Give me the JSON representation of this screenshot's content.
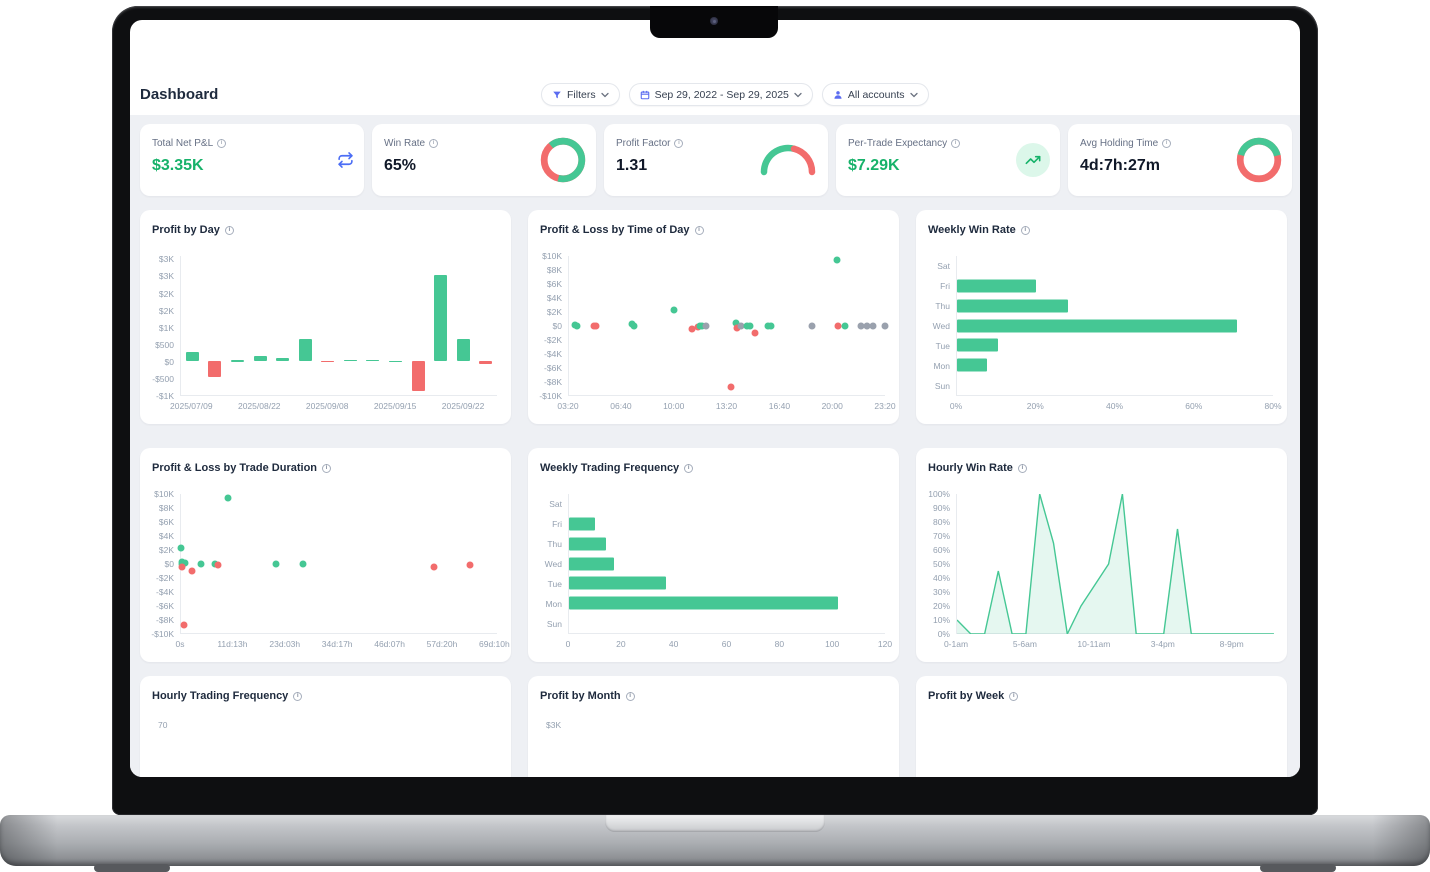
{
  "header": {
    "title": "Dashboard",
    "filters_label": "Filters",
    "date_range": "Sep 29, 2022 - Sep 29, 2025",
    "accounts_label": "All accounts"
  },
  "colors": {
    "green": "#45c794",
    "red": "#f26c6c",
    "gray_dot": "#9aa1ad",
    "indigo_icon": "#5b6cf0",
    "blue_icon": "#4c6ef5",
    "profit_green": "#17b26a",
    "page_bg": "#eef0f4"
  },
  "kpis": [
    {
      "label": "Total Net P&L",
      "value": "$3.35K",
      "value_color": "green",
      "icon": "repeat-icon"
    },
    {
      "label": "Win Rate",
      "value": "65%",
      "ring": {
        "green_pct": 65,
        "start_deg": 320
      }
    },
    {
      "label": "Profit Factor",
      "value": "1.31",
      "gauge": {
        "green_pct": 58
      }
    },
    {
      "label": "Per-Trade Expectancy",
      "value": "$7.29K",
      "value_color": "green",
      "icon": "trend-up-icon"
    },
    {
      "label": "Avg Holding Time",
      "value": "4d:7h:27m",
      "ring": {
        "green_pct": 42,
        "start_deg": 285
      }
    }
  ],
  "chart_data": [
    {
      "type": "bar",
      "title": "Profit by Day",
      "values": [
        280,
        -480,
        20,
        150,
        100,
        650,
        -40,
        30,
        40,
        15,
        -880,
        2550,
        650,
        -90
      ],
      "x_tick_indices": [
        0,
        3,
        6,
        9,
        12
      ],
      "x_tick_labels": [
        "2025/07/09",
        "2025/08/22",
        "2025/09/08",
        "2025/09/15",
        "2025/09/22"
      ],
      "y_ticks": [
        {
          "label": "$3K",
          "v": 3000
        },
        {
          "label": "$3K",
          "v": 2500
        },
        {
          "label": "$2K",
          "v": 2000
        },
        {
          "label": "$2K",
          "v": 1500
        },
        {
          "label": "$1K",
          "v": 1000
        },
        {
          "label": "$500",
          "v": 500
        },
        {
          "label": "$0",
          "v": 0
        },
        {
          "label": "-$500",
          "v": -500
        },
        {
          "label": "-$1K",
          "v": -1000
        }
      ],
      "ylim": [
        -1000,
        3100
      ]
    },
    {
      "type": "scatter",
      "title": "Profit & Loss by Time of Day",
      "xlim": [
        3.33,
        23.33
      ],
      "x_ticks": [
        {
          "label": "03:20",
          "v": 3.33
        },
        {
          "label": "06:40",
          "v": 6.67
        },
        {
          "label": "10:00",
          "v": 10
        },
        {
          "label": "13:20",
          "v": 13.33
        },
        {
          "label": "16:40",
          "v": 16.67
        },
        {
          "label": "20:00",
          "v": 20
        },
        {
          "label": "23:20",
          "v": 23.33
        }
      ],
      "ylim": [
        -10000,
        10000
      ],
      "y_ticks": [
        {
          "label": "$10K",
          "v": 10000
        },
        {
          "label": "$8K",
          "v": 8000
        },
        {
          "label": "$6K",
          "v": 6000
        },
        {
          "label": "$4K",
          "v": 4000
        },
        {
          "label": "$2K",
          "v": 2000
        },
        {
          "label": "$0",
          "v": 0
        },
        {
          "label": "-$2K",
          "v": -2000
        },
        {
          "label": "-$4K",
          "v": -4000
        },
        {
          "label": "-$6K",
          "v": -6000
        },
        {
          "label": "-$8K",
          "v": -8000
        },
        {
          "label": "-$10K",
          "v": -10000
        }
      ],
      "points": [
        {
          "x": 3.7,
          "y": 100,
          "c": "green"
        },
        {
          "x": 3.85,
          "y": 0,
          "c": "green"
        },
        {
          "x": 4.9,
          "y": 0,
          "c": "red"
        },
        {
          "x": 5.05,
          "y": 0,
          "c": "red"
        },
        {
          "x": 7.3,
          "y": 150,
          "c": "green"
        },
        {
          "x": 7.45,
          "y": 0,
          "c": "green"
        },
        {
          "x": 10.0,
          "y": 2200,
          "c": "green"
        },
        {
          "x": 11.1,
          "y": -500,
          "c": "red"
        },
        {
          "x": 11.5,
          "y": -250,
          "c": "red"
        },
        {
          "x": 11.65,
          "y": 0,
          "c": "green"
        },
        {
          "x": 11.75,
          "y": 0,
          "c": "green"
        },
        {
          "x": 12.0,
          "y": 0,
          "c": "gray"
        },
        {
          "x": 13.6,
          "y": -8900,
          "c": "red"
        },
        {
          "x": 13.9,
          "y": 300,
          "c": "green"
        },
        {
          "x": 13.95,
          "y": -350,
          "c": "red"
        },
        {
          "x": 14.2,
          "y": 0,
          "c": "gray"
        },
        {
          "x": 14.6,
          "y": 0,
          "c": "green"
        },
        {
          "x": 14.8,
          "y": 0,
          "c": "green"
        },
        {
          "x": 15.1,
          "y": -1100,
          "c": "red"
        },
        {
          "x": 15.9,
          "y": 0,
          "c": "green"
        },
        {
          "x": 16.1,
          "y": 0,
          "c": "green"
        },
        {
          "x": 18.7,
          "y": 0,
          "c": "gray"
        },
        {
          "x": 20.3,
          "y": 9400,
          "c": "green"
        },
        {
          "x": 20.35,
          "y": 0,
          "c": "red"
        },
        {
          "x": 20.8,
          "y": 0,
          "c": "green"
        },
        {
          "x": 21.8,
          "y": 0,
          "c": "gray"
        },
        {
          "x": 22.2,
          "y": 0,
          "c": "gray"
        },
        {
          "x": 22.6,
          "y": 0,
          "c": "gray"
        },
        {
          "x": 23.3,
          "y": 0,
          "c": "gray"
        }
      ]
    },
    {
      "type": "hbar",
      "title": "Weekly Win Rate",
      "categories": [
        "Sat",
        "Fri",
        "Thu",
        "Wed",
        "Tue",
        "Mon",
        "Sun"
      ],
      "values": [
        0,
        20,
        28,
        71,
        10.5,
        7.5,
        0
      ],
      "xlim": [
        0,
        80
      ],
      "x_ticks": [
        {
          "label": "0%",
          "v": 0
        },
        {
          "label": "20%",
          "v": 20
        },
        {
          "label": "40%",
          "v": 40
        },
        {
          "label": "60%",
          "v": 60
        },
        {
          "label": "80%",
          "v": 80
        }
      ]
    },
    {
      "type": "scatter",
      "title": "Profit & Loss by Trade Duration",
      "xlim": [
        0,
        70
      ],
      "x_ticks": [
        {
          "label": "0s",
          "v": 0
        },
        {
          "label": "11d:13h",
          "v": 11.57
        },
        {
          "label": "23d:03h",
          "v": 23.14
        },
        {
          "label": "34d:17h",
          "v": 34.71
        },
        {
          "label": "46d:07h",
          "v": 46.28
        },
        {
          "label": "57d:20h",
          "v": 57.85
        },
        {
          "label": "69d:10h",
          "v": 69.42
        }
      ],
      "ylim": [
        -10000,
        10000
      ],
      "y_ticks": [
        {
          "label": "$10K",
          "v": 10000
        },
        {
          "label": "$8K",
          "v": 8000
        },
        {
          "label": "$6K",
          "v": 6000
        },
        {
          "label": "$4K",
          "v": 4000
        },
        {
          "label": "$2K",
          "v": 2000
        },
        {
          "label": "$0",
          "v": 0
        },
        {
          "label": "-$2K",
          "v": -2000
        },
        {
          "label": "-$4K",
          "v": -4000
        },
        {
          "label": "-$6K",
          "v": -6000
        },
        {
          "label": "-$8K",
          "v": -8000
        },
        {
          "label": "-$10K",
          "v": -10000
        }
      ],
      "points": [
        {
          "x": 0.1,
          "y": 2200,
          "c": "green"
        },
        {
          "x": 0.15,
          "y": 150,
          "c": "green"
        },
        {
          "x": 0.2,
          "y": 0,
          "c": "green"
        },
        {
          "x": 0.4,
          "y": -100,
          "c": "green"
        },
        {
          "x": 0.8,
          "y": 50,
          "c": "green"
        },
        {
          "x": 0.15,
          "y": -450,
          "c": "red"
        },
        {
          "x": 0.7,
          "y": -8900,
          "c": "red"
        },
        {
          "x": 2.5,
          "y": -1100,
          "c": "red"
        },
        {
          "x": 4.5,
          "y": 0,
          "c": "green"
        },
        {
          "x": 7.5,
          "y": 0,
          "c": "green"
        },
        {
          "x": 8.2,
          "y": -250,
          "c": "red"
        },
        {
          "x": 10.5,
          "y": 9400,
          "c": "green"
        },
        {
          "x": 21.0,
          "y": 0,
          "c": "green"
        },
        {
          "x": 27.0,
          "y": 0,
          "c": "green"
        },
        {
          "x": 56.0,
          "y": -500,
          "c": "red"
        },
        {
          "x": 64.0,
          "y": -200,
          "c": "red"
        }
      ]
    },
    {
      "type": "hbar",
      "title": "Weekly Trading Frequency",
      "categories": [
        "Sat",
        "Fri",
        "Thu",
        "Wed",
        "Tue",
        "Mon",
        "Sun"
      ],
      "values": [
        0,
        10,
        14,
        17,
        37,
        102,
        0
      ],
      "xlim": [
        0,
        120
      ],
      "x_ticks": [
        {
          "label": "0",
          "v": 0
        },
        {
          "label": "20",
          "v": 20
        },
        {
          "label": "40",
          "v": 40
        },
        {
          "label": "60",
          "v": 60
        },
        {
          "label": "80",
          "v": 80
        },
        {
          "label": "100",
          "v": 100
        },
        {
          "label": "120",
          "v": 120
        }
      ]
    },
    {
      "type": "area",
      "title": "Hourly Win Rate",
      "x_hours": [
        0,
        1,
        2,
        3,
        4,
        5,
        6,
        7,
        8,
        9,
        10,
        11,
        12,
        13,
        14,
        15,
        16,
        17,
        18,
        19,
        20,
        21,
        22,
        23
      ],
      "values": [
        10,
        0,
        0,
        45,
        0,
        0,
        100,
        65,
        0,
        20,
        35,
        50,
        100,
        0,
        0,
        0,
        75,
        0,
        0,
        0,
        0,
        0,
        0,
        0
      ],
      "xlim": [
        0,
        23
      ],
      "x_ticks": [
        {
          "label": "0-1am",
          "v": 0
        },
        {
          "label": "5-6am",
          "v": 5
        },
        {
          "label": "10-11am",
          "v": 10
        },
        {
          "label": "3-4pm",
          "v": 15
        },
        {
          "label": "8-9pm",
          "v": 20
        }
      ],
      "ylim": [
        0,
        100
      ],
      "y_ticks": [
        {
          "label": "100%",
          "v": 100
        },
        {
          "label": "90%",
          "v": 90
        },
        {
          "label": "80%",
          "v": 80
        },
        {
          "label": "70%",
          "v": 70
        },
        {
          "label": "60%",
          "v": 60
        },
        {
          "label": "50%",
          "v": 50
        },
        {
          "label": "40%",
          "v": 40
        },
        {
          "label": "30%",
          "v": 30
        },
        {
          "label": "20%",
          "v": 20
        },
        {
          "label": "10%",
          "v": 10
        },
        {
          "label": "0%",
          "v": 0
        }
      ]
    },
    {
      "type": "partial",
      "title": "Hourly Trading Frequency",
      "first_y_tick": "70"
    },
    {
      "type": "partial",
      "title": "Profit by Month",
      "first_y_tick": "$3K"
    },
    {
      "type": "partial",
      "title": "Profit by Week",
      "first_y_tick": ""
    }
  ]
}
